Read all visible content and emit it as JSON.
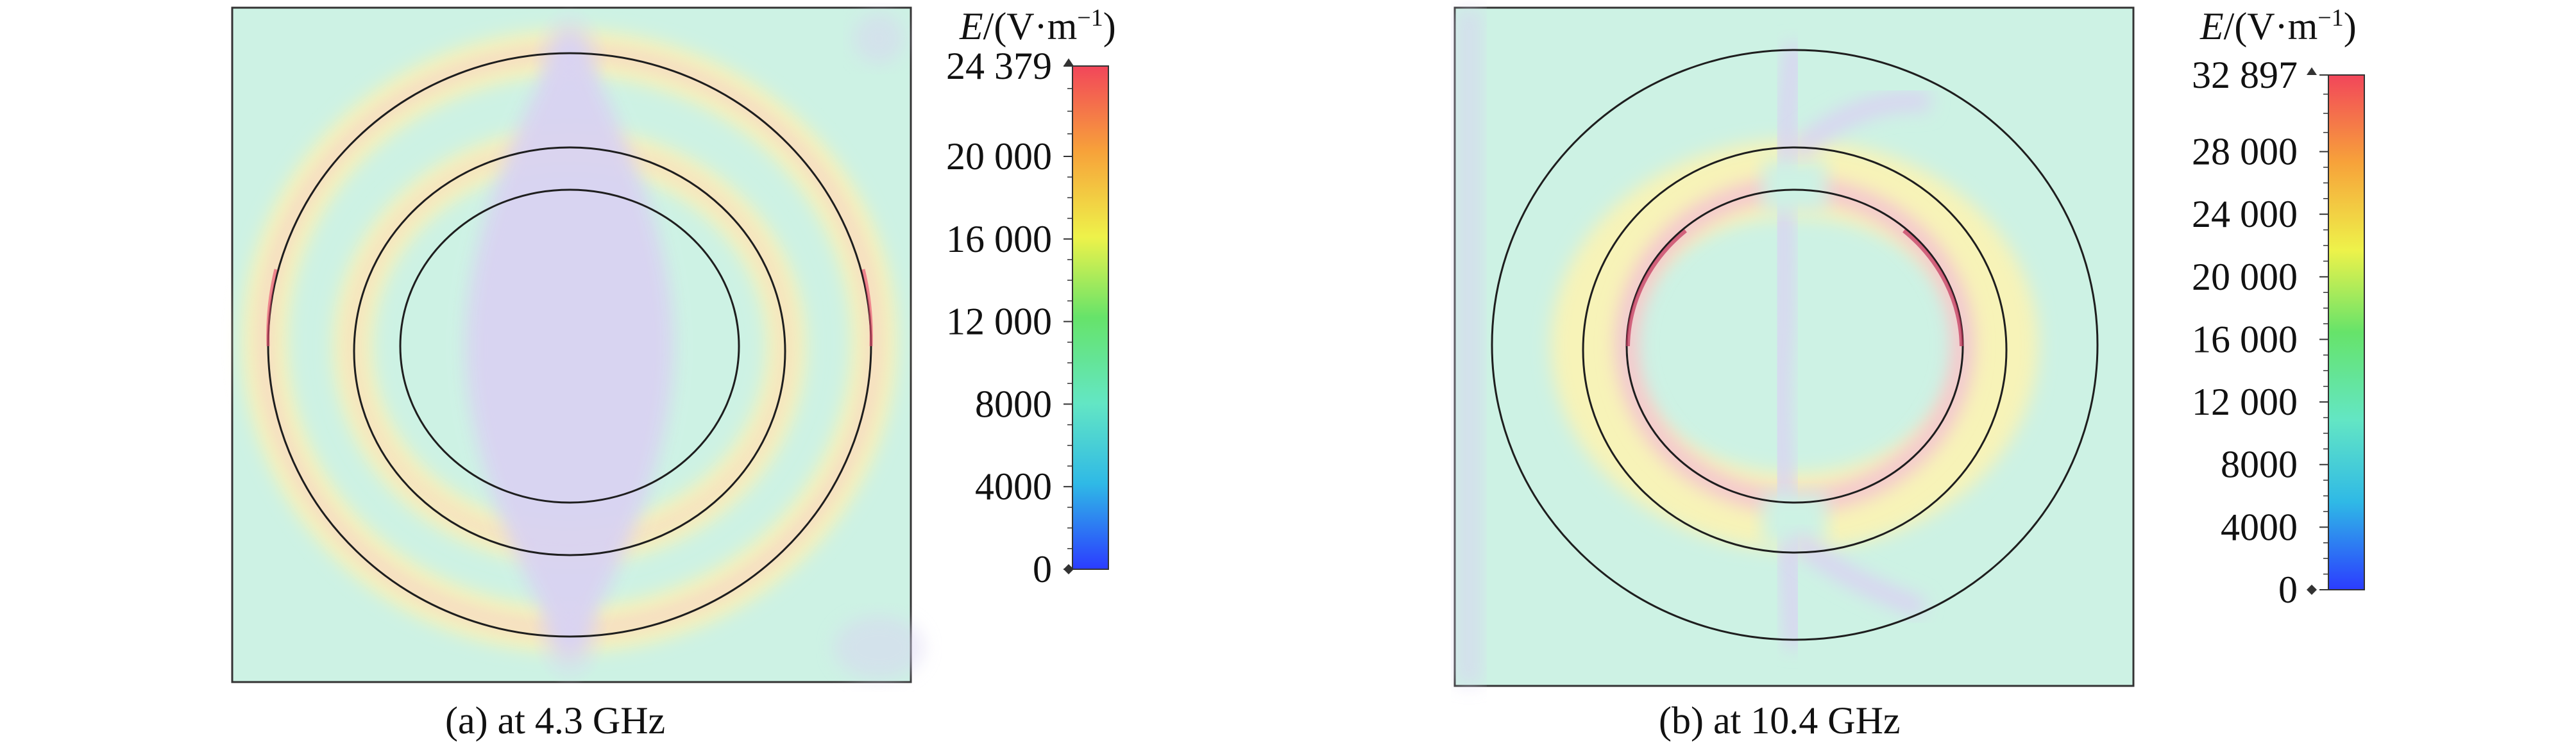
{
  "panels": [
    {
      "caption": "(a) at 4.3 GHz",
      "colorbar": {
        "title_symbol": "E",
        "title_units": "/(V·m",
        "title_exponent": "−1",
        "title_close": ")",
        "max": 24379,
        "tick_labels": [
          "24 379",
          "20 000",
          "16 000",
          "12 000",
          "8000",
          "4000",
          "0"
        ],
        "tick_values": [
          24379,
          20000,
          16000,
          12000,
          8000,
          4000,
          0
        ]
      }
    },
    {
      "caption": "(b) at 10.4 GHz",
      "colorbar": {
        "title_symbol": "E",
        "title_units": "/(V·m",
        "title_exponent": "−1",
        "title_close": ")",
        "max": 32897,
        "tick_labels": [
          "32 897",
          "28 000",
          "24 000",
          "20 000",
          "16 000",
          "12 000",
          "8000",
          "4000",
          "0"
        ],
        "tick_values": [
          32897,
          28000,
          24000,
          20000,
          16000,
          12000,
          8000,
          4000,
          0
        ]
      }
    }
  ],
  "colors": {
    "background_field": "#cdf2e4",
    "low_field": "#d9d3f2",
    "mid_field": "#f7f3b8",
    "high_field": "#f4c6cf",
    "outline": "#1e1e1e",
    "colorbar_stops": [
      "#2b3cff",
      "#2fb9e6",
      "#63e6c4",
      "#66e36a",
      "#eef24a",
      "#f7a23a",
      "#f2465a"
    ]
  }
}
